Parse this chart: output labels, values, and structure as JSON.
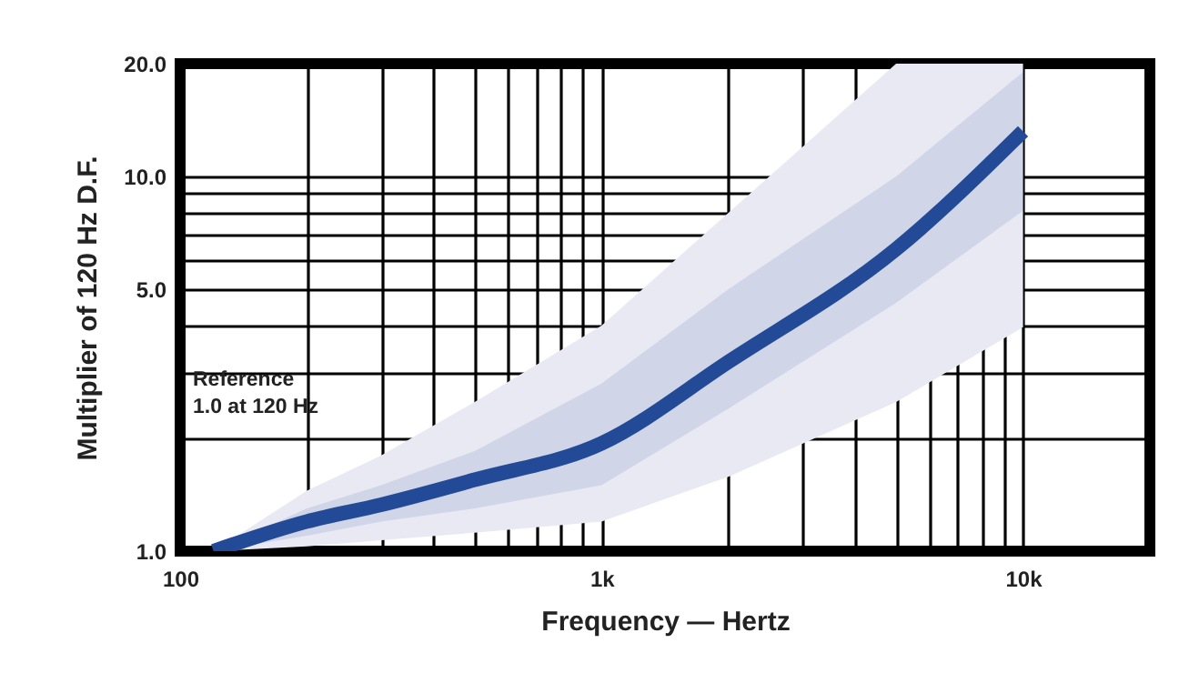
{
  "chart_data": {
    "type": "line",
    "xlabel": "Frequency — Hertz",
    "ylabel": "Multiplier of 120 Hz D.F.",
    "x": [
      120,
      200,
      300,
      500,
      1000,
      2000,
      5000,
      10000
    ],
    "series": [
      {
        "color": "#234a96",
        "values": [
          1.0,
          1.2,
          1.33,
          1.55,
          1.94,
          3.2,
          6.4,
          13.2
        ],
        "lower": [
          1.0,
          1.1,
          1.2,
          1.3,
          1.5,
          2.4,
          4.6,
          8.1
        ],
        "upper": [
          1.0,
          1.3,
          1.5,
          1.85,
          2.8,
          5.0,
          10,
          19
        ]
      },
      {
        "color": "#e9e9f3",
        "values": [
          null,
          null,
          null,
          null,
          null,
          null,
          null,
          null
        ],
        "lower": [
          1.0,
          1.03,
          1.07,
          1.12,
          1.2,
          1.58,
          2.5,
          3.96
        ],
        "upper": [
          1.0,
          1.45,
          1.8,
          2.5,
          4.0,
          8.0,
          20,
          20
        ]
      }
    ],
    "xlim": [
      100,
      20000
    ],
    "xticks": [
      {
        "value": 100,
        "label": "100"
      },
      {
        "value": 200,
        "label": null
      },
      {
        "value": 300,
        "label": null
      },
      {
        "value": 400,
        "label": null
      },
      {
        "value": 500,
        "label": null
      },
      {
        "value": 600,
        "label": null
      },
      {
        "value": 700,
        "label": null
      },
      {
        "value": 800,
        "label": null
      },
      {
        "value": 900,
        "label": null
      },
      {
        "value": 1000,
        "label": "1k"
      },
      {
        "value": 2000,
        "label": null
      },
      {
        "value": 3000,
        "label": null
      },
      {
        "value": 4000,
        "label": null
      },
      {
        "value": 5000,
        "label": null
      },
      {
        "value": 6000,
        "label": null
      },
      {
        "value": 7000,
        "label": null
      },
      {
        "value": 8000,
        "label": null
      },
      {
        "value": 9000,
        "label": null
      },
      {
        "value": 10000,
        "label": "10k"
      },
      {
        "value": 20000,
        "label": null
      }
    ],
    "ylim": [
      1,
      20
    ],
    "yticks": [
      {
        "value": 1,
        "label": "1.0"
      },
      {
        "value": 2,
        "label": null
      },
      {
        "value": 3,
        "label": null
      },
      {
        "value": 4,
        "label": null
      },
      {
        "value": 5,
        "label": "5.0"
      },
      {
        "value": 6,
        "label": null
      },
      {
        "value": 7,
        "label": null
      },
      {
        "value": 8,
        "label": null
      },
      {
        "value": 9,
        "label": null
      },
      {
        "value": 10,
        "label": "10.0"
      },
      {
        "value": 20,
        "label": "20.0"
      }
    ],
    "log": "xy",
    "grid": true,
    "annotations": [
      "Reference\n1.0 at 120 Hz"
    ]
  }
}
